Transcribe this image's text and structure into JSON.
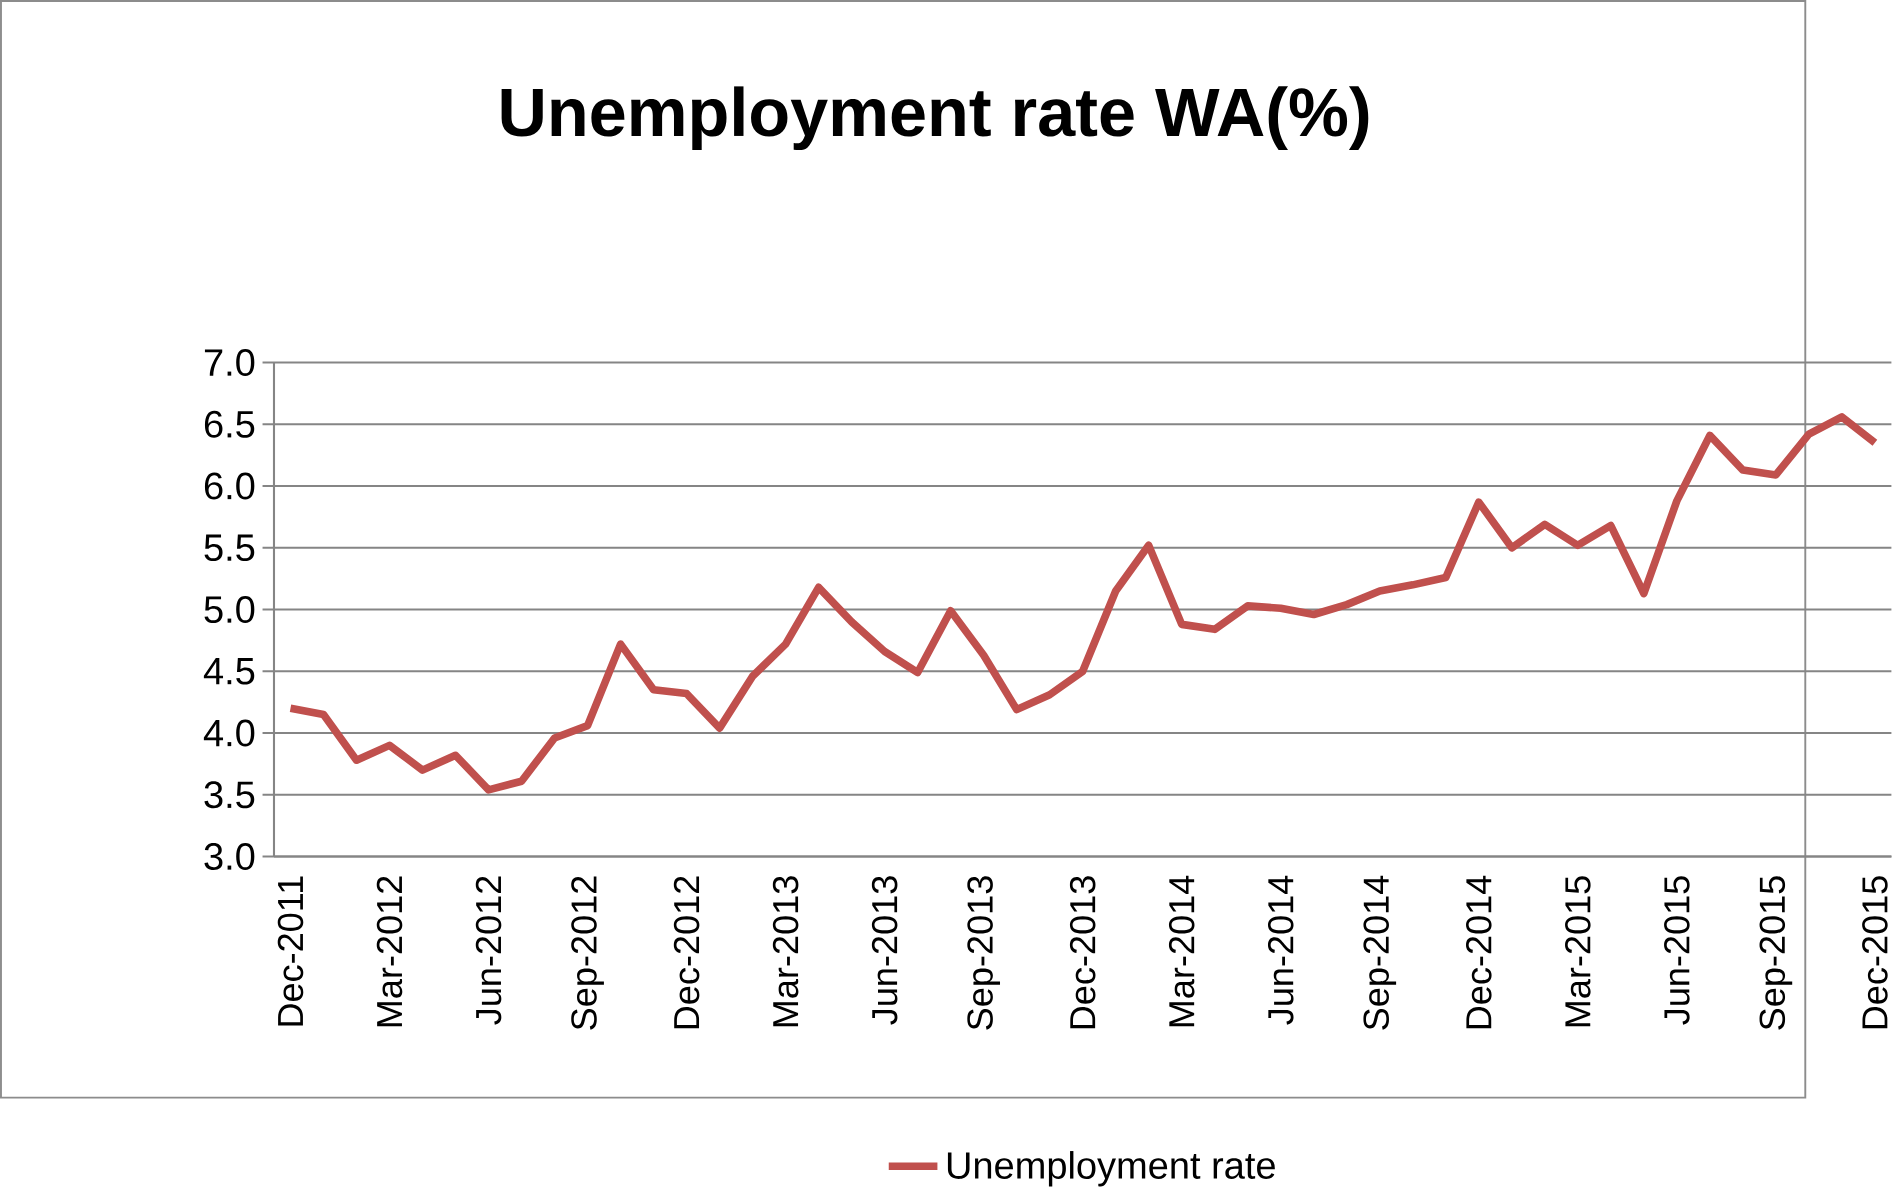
{
  "chart_data": {
    "type": "line",
    "title": "Unemployment rate WA(%)",
    "categories": [
      "Dec-2011",
      null,
      null,
      "Mar-2012",
      null,
      null,
      "Jun-2012",
      null,
      null,
      "Sep-2012",
      null,
      null,
      "Dec-2012",
      null,
      null,
      "Mar-2013",
      null,
      null,
      "Jun-2013",
      null,
      null,
      "Sep-2013",
      null,
      null,
      "Dec-2013",
      null,
      null,
      "Mar-2014",
      null,
      null,
      "Jun-2014",
      null,
      null,
      "Sep-2014",
      null,
      null,
      "Dec-2014",
      null,
      null,
      "Mar-2015",
      null,
      null,
      "Jun-2015",
      null,
      null,
      "Sep-2015",
      null,
      null,
      "Dec-2015"
    ],
    "series": [
      {
        "name": "Unemployment rate",
        "color": "#c0504d",
        "values": [
          4.2,
          4.15,
          3.78,
          3.9,
          3.7,
          3.82,
          3.54,
          3.61,
          3.96,
          4.06,
          4.72,
          4.35,
          4.32,
          4.04,
          4.46,
          4.72,
          5.18,
          4.9,
          4.66,
          4.49,
          4.99,
          4.63,
          4.19,
          4.31,
          4.5,
          5.15,
          5.52,
          4.88,
          4.84,
          5.03,
          5.01,
          4.96,
          5.04,
          5.15,
          5.2,
          5.26,
          5.87,
          5.5,
          5.69,
          5.52,
          5.68,
          5.13,
          5.88,
          6.41,
          6.13,
          6.09,
          6.42,
          6.56,
          6.35
        ]
      }
    ],
    "ylim": [
      3,
      7
    ],
    "yticks": [
      {
        "value": 3,
        "label": "3.0"
      },
      {
        "value": 3.5,
        "label": "3.5"
      },
      {
        "value": 4,
        "label": "4.0"
      },
      {
        "value": 4.5,
        "label": "4.5"
      },
      {
        "value": 5,
        "label": "5.0"
      },
      {
        "value": 5.5,
        "label": "5.5"
      },
      {
        "value": 6,
        "label": "6.0"
      },
      {
        "value": 6.5,
        "label": "6.5"
      },
      {
        "value": 7,
        "label": "7.0"
      }
    ],
    "grid": "y",
    "legend": "bottom"
  }
}
